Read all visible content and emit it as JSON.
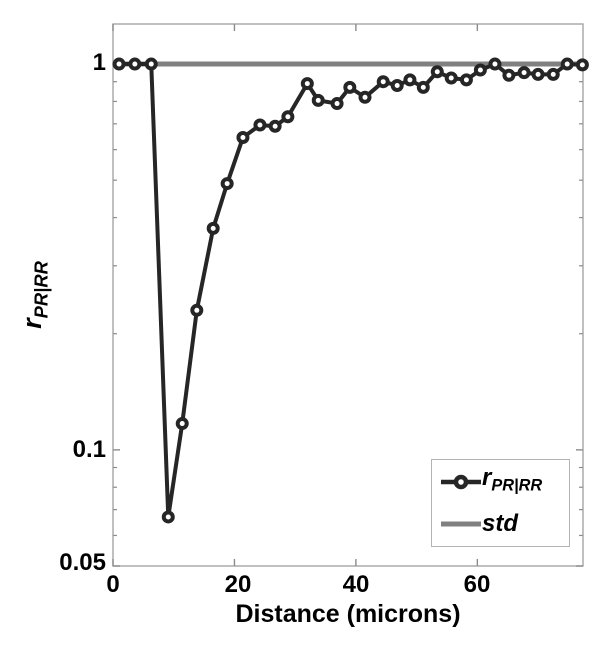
{
  "chart_data": {
    "type": "line",
    "title": "",
    "xlabel": "Distance (microns)",
    "ylabel_base": "r",
    "ylabel_sub": "PR|RR",
    "x_scale": "linear",
    "y_scale": "log",
    "xlim": [
      0,
      77.4
    ],
    "ylim": [
      0.05,
      1.27
    ],
    "x_tick_labels": [
      "0",
      "20",
      "40",
      "60"
    ],
    "x_tick_values": [
      0,
      20,
      40,
      60
    ],
    "y_tick_labels": [
      "1",
      "0.1",
      "0.05"
    ],
    "y_tick_values": [
      1,
      0.1,
      0.05
    ],
    "y_minor_tick_values": [
      0.9,
      0.8,
      0.7,
      0.6,
      0.5,
      0.4,
      0.3,
      0.2,
      0.09,
      0.08,
      0.07,
      0.06
    ],
    "grid": false,
    "legend_position": "lower right",
    "series": [
      {
        "name": "r_PR|RR",
        "label_base": "r",
        "label_sub": "PR|RR",
        "style": "line+marker",
        "marker": "open-circle",
        "color": "#262626",
        "line_width": 4,
        "x": [
          1.0,
          3.6,
          6.3,
          9.1,
          11.4,
          13.8,
          16.5,
          18.8,
          21.4,
          24.2,
          26.7,
          28.8,
          32.0,
          33.8,
          36.9,
          39.0,
          41.5,
          44.5,
          46.8,
          48.9,
          51.1,
          53.4,
          55.7,
          58.2,
          60.5,
          62.9,
          65.2,
          67.7,
          70.0,
          72.5,
          74.8,
          77.3
        ],
        "y": [
          1.0,
          1.0,
          1.0,
          0.067,
          0.117,
          0.23,
          0.375,
          0.49,
          0.645,
          0.695,
          0.69,
          0.73,
          0.89,
          0.805,
          0.79,
          0.87,
          0.82,
          0.9,
          0.88,
          0.91,
          0.87,
          0.955,
          0.92,
          0.91,
          0.965,
          1.0,
          0.935,
          0.95,
          0.94,
          0.94,
          1.0,
          0.995
        ]
      },
      {
        "name": "std",
        "label": "std",
        "style": "line",
        "marker": "none",
        "color": "#808080",
        "line_width": 5,
        "x": [
          0,
          77.4
        ],
        "y": [
          1.0,
          1.0
        ]
      }
    ]
  },
  "styles": {
    "background": "#ffffff",
    "axis_color": "#a6a6a6",
    "tick_color": "#8c8c8c",
    "text_color": "#000000",
    "legend_border": "#b3b3b3",
    "marker_fill": "#ffffff"
  }
}
